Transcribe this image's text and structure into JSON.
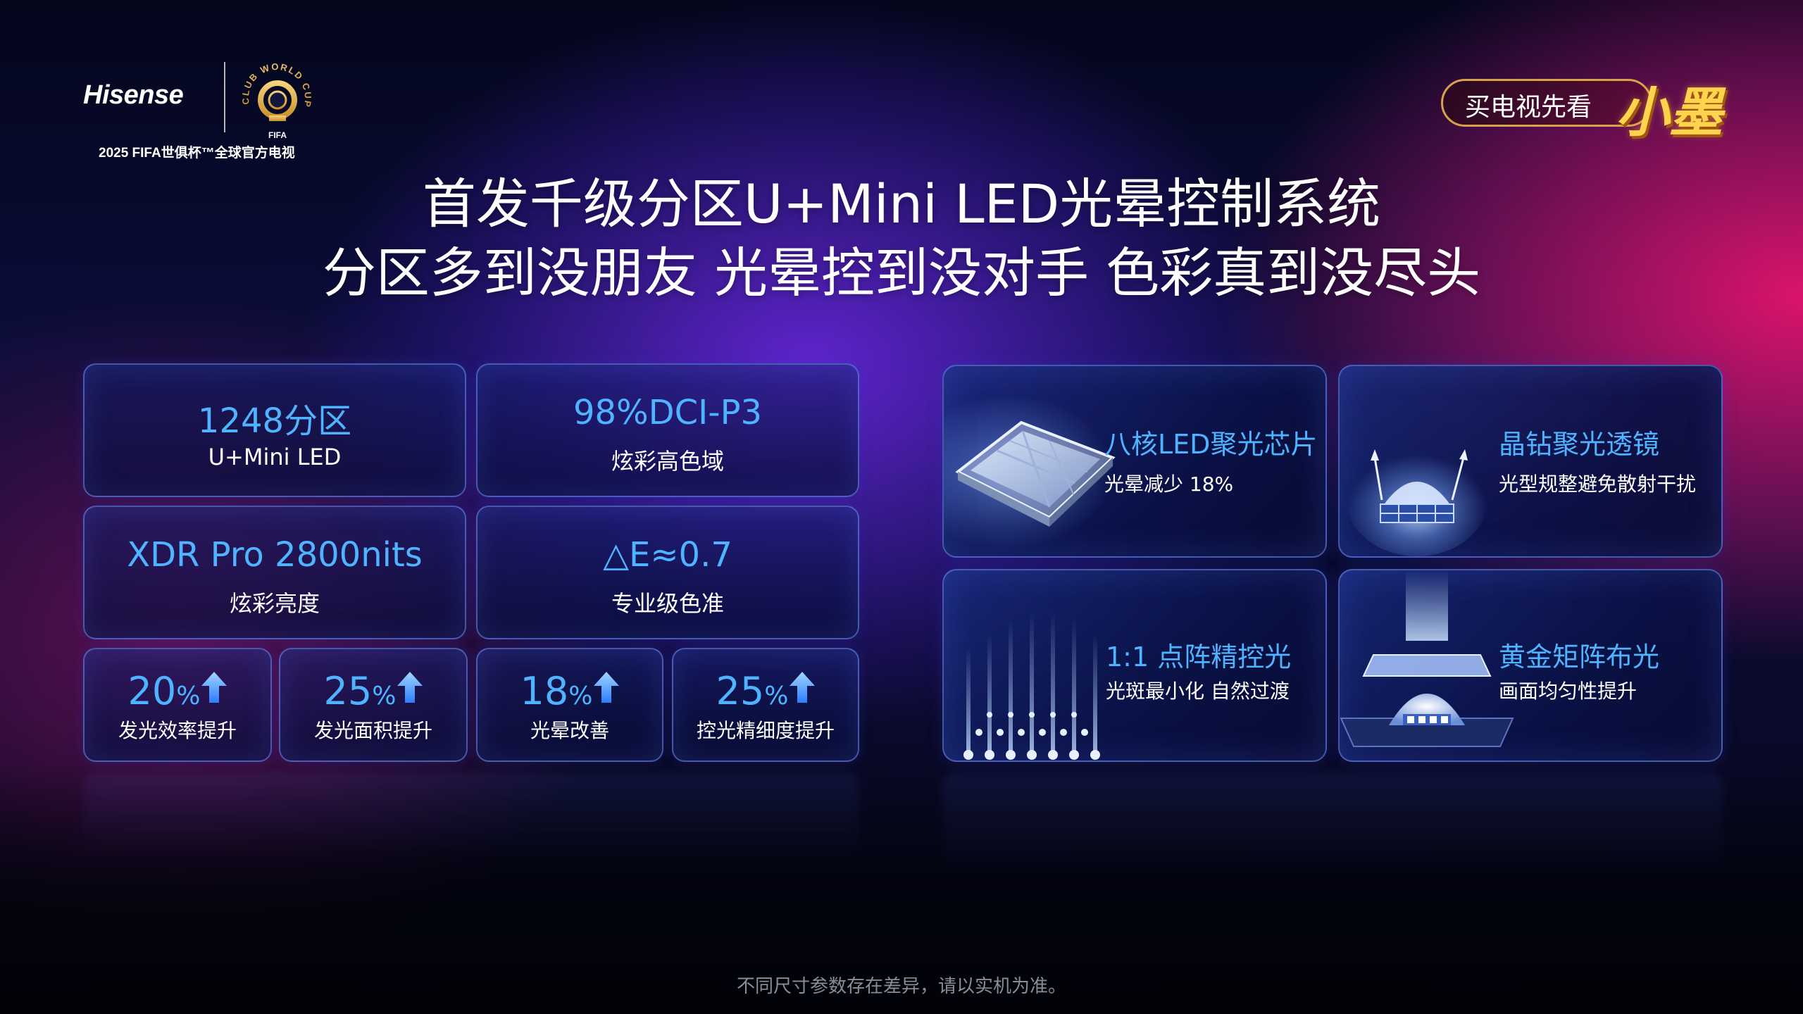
{
  "brand": {
    "logo_text": "Hisense",
    "cwc_top": "CLUB WORLD CUP 25",
    "cwc_bottom": "FIFA",
    "caption": "2025 FIFA世俱杯™全球官方电视"
  },
  "slogan": {
    "text": "买电视先看",
    "brand": "小墨"
  },
  "title": {
    "line1": "首发千级分区U+Mini LED光晕控制系统",
    "line2": "分区多到没朋友 光晕控到没对手 色彩真到没尽头"
  },
  "specs": [
    {
      "value": "1248分区",
      "label": "U+Mini LED"
    },
    {
      "value": "98%DCI-P3",
      "label": "炫彩高色域"
    },
    {
      "value": "XDR Pro 2800nits",
      "label": "炫彩亮度"
    },
    {
      "value": "△E≈0.7",
      "label": "专业级色准"
    }
  ],
  "improvements": [
    {
      "value": "20",
      "unit": "%",
      "label": "发光效率提升",
      "icon": "up-arrow-icon"
    },
    {
      "value": "25",
      "unit": "%",
      "label": "发光面积提升",
      "icon": "up-arrow-icon"
    },
    {
      "value": "18",
      "unit": "%",
      "label": "光晕改善",
      "icon": "up-arrow-icon"
    },
    {
      "value": "25",
      "unit": "%",
      "label": "控光精细度提升",
      "icon": "up-arrow-icon"
    }
  ],
  "features": [
    {
      "title": "八核LED聚光芯片",
      "desc": "光晕减少 18%",
      "icon": "led-chip-icon"
    },
    {
      "title": "晶钻聚光透镜",
      "desc": "光型规整避免散射干扰",
      "icon": "crystal-lens-icon"
    },
    {
      "title": "1:1 点阵精控光",
      "desc": "光斑最小化 自然过渡",
      "icon": "dot-matrix-icon"
    },
    {
      "title": "黄金矩阵布光",
      "desc": "画面均匀性提升",
      "icon": "matrix-light-icon"
    }
  ],
  "footnote": "不同尺寸参数存在差异，请以实机为准。",
  "colors": {
    "accent_blue": "#4fb3ff",
    "slogan_gold": "#ffd34d",
    "magenta": "#e6146e",
    "violet": "#6e28e6"
  }
}
